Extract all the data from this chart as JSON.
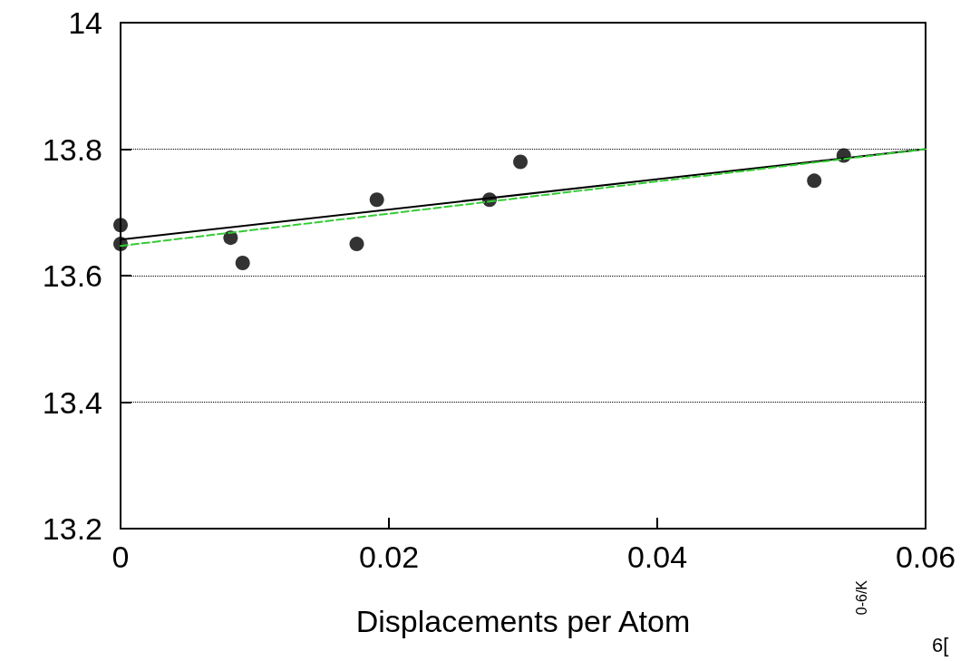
{
  "chart_data": {
    "type": "scatter",
    "xlabel": "Displacements per Atom",
    "series": [
      {
        "color": "#000000",
        "marker": "circle",
        "x": [
          0,
          0,
          0.0082,
          0.0091,
          0.0176,
          0.0191,
          0.0275,
          0.0298,
          0.0517,
          0.0539
        ],
        "values": [
          13.68,
          13.65,
          13.66,
          13.62,
          13.65,
          13.72,
          13.72,
          13.78,
          13.75,
          13.79
        ]
      },
      {
        "type": "line",
        "color": "#000000",
        "line_style": "solid",
        "marker": "none",
        "x": [
          0,
          0.06
        ],
        "values": [
          13.657,
          13.8
        ]
      },
      {
        "type": "line",
        "color": "#33cc33",
        "line_style": "dashed",
        "marker": "none",
        "x": [
          0,
          0.06
        ],
        "values": [
          13.647,
          13.8
        ]
      }
    ],
    "xlim": [
      0,
      0.06
    ],
    "xticks": [
      0,
      0.02,
      0.04,
      0.06
    ],
    "ylim": [
      13.2,
      14
    ],
    "yticks": [
      13.2,
      13.4,
      13.6,
      13.8,
      14
    ],
    "grid": "y",
    "annotations": [
      "0-6/K",
      "6["
    ]
  }
}
